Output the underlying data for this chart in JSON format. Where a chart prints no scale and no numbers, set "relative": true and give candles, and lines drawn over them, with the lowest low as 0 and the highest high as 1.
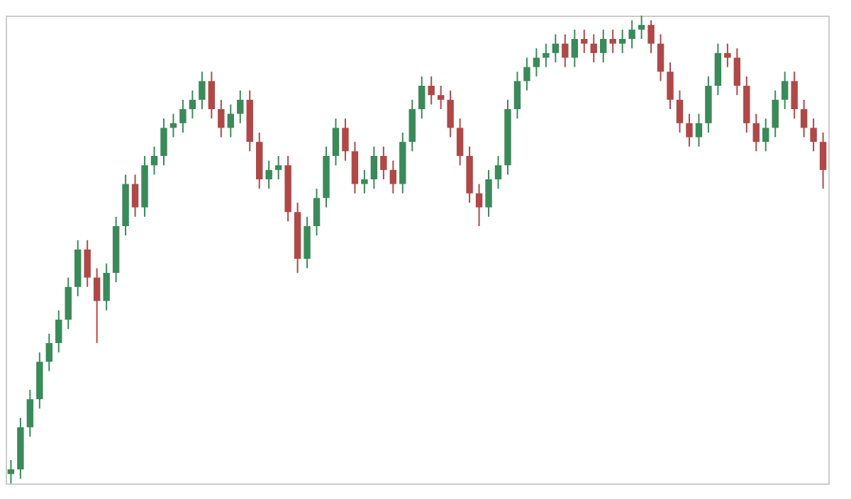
{
  "chart_data": {
    "type": "candlestick",
    "relative": true,
    "colors": [
      "#3a8a5a",
      "#3a8a5a",
      "#3a8a5a",
      "#3a8a5a",
      "#3a8a5a",
      "#3a8a5a",
      "#3a8a5a",
      "#3a8a5a",
      "#b04848",
      "#b04848",
      "#3a8a5a",
      "#3a8a5a",
      "#3a8a5a",
      "#b04848",
      "#3a8a5a",
      "#3a8a5a",
      "#3a8a5a",
      "#3a8a5a",
      "#3a8a5a",
      "#3a8a5a",
      "#3a8a5a",
      "#b04848",
      "#b04848",
      "#3a8a5a",
      "#3a8a5a",
      "#b04848",
      "#b04848",
      "#3a8a5a",
      "#3a8a5a",
      "#b04848",
      "#b04848",
      "#3a8a5a",
      "#3a8a5a",
      "#3a8a5a",
      "#3a8a5a",
      "#b04848",
      "#b04848",
      "#3a8a5a",
      "#3a8a5a",
      "#b04848",
      "#b04848",
      "#3a8a5a",
      "#3a8a5a",
      "#3a8a5a",
      "#b04848",
      "#b04848",
      "#b04848",
      "#b04848",
      "#b04848",
      "#b04848",
      "#3a8a5a",
      "#3a8a5a",
      "#3a8a5a",
      "#3a8a5a",
      "#3a8a5a",
      "#3a8a5a",
      "#3a8a5a",
      "#3a8a5a",
      "#b04848",
      "#3a8a5a",
      "#b04848",
      "#b04848",
      "#3a8a5a",
      "#b04848",
      "#3a8a5a",
      "#3a8a5a",
      "#3a8a5a",
      "#b04848",
      "#b04848",
      "#b04848",
      "#b04848",
      "#b04848",
      "#3a8a5a",
      "#3a8a5a",
      "#3a8a5a",
      "#b04848",
      "#b04848",
      "#b04848",
      "#b04848",
      "#3a8a5a",
      "#3a8a5a",
      "#3a8a5a",
      "#b04848",
      "#b04848",
      "#b04848",
      "#b04848"
    ],
    "categories": [
      null,
      null,
      null,
      null,
      null,
      null,
      null,
      null,
      null,
      null,
      null,
      null,
      null,
      null,
      null,
      null,
      null,
      null,
      null,
      null,
      null,
      null,
      null,
      null,
      null,
      null,
      null,
      null,
      null,
      null,
      null,
      null,
      null,
      null,
      null,
      null,
      null,
      null,
      null,
      null,
      null,
      null,
      null,
      null,
      null,
      null,
      null,
      null,
      null,
      null,
      null,
      null,
      null,
      null,
      null,
      null,
      null,
      null,
      null,
      null,
      null,
      null,
      null,
      null,
      null,
      null,
      null,
      null,
      null,
      null,
      null,
      null,
      null,
      null,
      null,
      null,
      null,
      null,
      null,
      null,
      null,
      null,
      null,
      null,
      null,
      null
    ],
    "ohlc": [
      [
        0.02,
        0.05,
        0,
        0.03
      ],
      [
        0.03,
        0.14,
        0.01,
        0.12
      ],
      [
        0.12,
        0.2,
        0.1,
        0.18
      ],
      [
        0.18,
        0.28,
        0.16,
        0.26
      ],
      [
        0.26,
        0.32,
        0.24,
        0.3
      ],
      [
        0.3,
        0.37,
        0.28,
        0.35
      ],
      [
        0.35,
        0.44,
        0.33,
        0.42
      ],
      [
        0.42,
        0.52,
        0.4,
        0.5
      ],
      [
        0.5,
        0.52,
        0.42,
        0.44
      ],
      [
        0.44,
        0.46,
        0.3,
        0.39
      ],
      [
        0.39,
        0.47,
        0.37,
        0.45
      ],
      [
        0.45,
        0.57,
        0.43,
        0.55
      ],
      [
        0.55,
        0.66,
        0.53,
        0.64
      ],
      [
        0.64,
        0.66,
        0.57,
        0.59
      ],
      [
        0.59,
        0.7,
        0.57,
        0.68
      ],
      [
        0.68,
        0.72,
        0.66,
        0.7
      ],
      [
        0.7,
        0.78,
        0.68,
        0.76
      ],
      [
        0.76,
        0.79,
        0.74,
        0.77
      ],
      [
        0.77,
        0.82,
        0.75,
        0.8
      ],
      [
        0.8,
        0.84,
        0.78,
        0.82
      ],
      [
        0.82,
        0.88,
        0.8,
        0.86
      ],
      [
        0.86,
        0.88,
        0.78,
        0.8
      ],
      [
        0.8,
        0.82,
        0.74,
        0.76
      ],
      [
        0.76,
        0.81,
        0.74,
        0.79
      ],
      [
        0.79,
        0.84,
        0.77,
        0.82
      ],
      [
        0.82,
        0.84,
        0.71,
        0.73
      ],
      [
        0.73,
        0.75,
        0.63,
        0.65
      ],
      [
        0.65,
        0.69,
        0.63,
        0.67
      ],
      [
        0.67,
        0.7,
        0.65,
        0.68
      ],
      [
        0.68,
        0.7,
        0.56,
        0.58
      ],
      [
        0.58,
        0.6,
        0.45,
        0.48
      ],
      [
        0.48,
        0.57,
        0.46,
        0.55
      ],
      [
        0.55,
        0.63,
        0.53,
        0.61
      ],
      [
        0.61,
        0.72,
        0.59,
        0.7
      ],
      [
        0.7,
        0.78,
        0.68,
        0.76
      ],
      [
        0.76,
        0.78,
        0.69,
        0.71
      ],
      [
        0.71,
        0.73,
        0.62,
        0.64
      ],
      [
        0.64,
        0.67,
        0.62,
        0.65
      ],
      [
        0.65,
        0.72,
        0.63,
        0.7
      ],
      [
        0.7,
        0.72,
        0.65,
        0.67
      ],
      [
        0.67,
        0.69,
        0.62,
        0.64
      ],
      [
        0.64,
        0.75,
        0.62,
        0.73
      ],
      [
        0.73,
        0.82,
        0.71,
        0.8
      ],
      [
        0.8,
        0.87,
        0.78,
        0.85
      ],
      [
        0.85,
        0.87,
        0.81,
        0.83
      ],
      [
        0.83,
        0.85,
        0.8,
        0.82
      ],
      [
        0.82,
        0.84,
        0.74,
        0.76
      ],
      [
        0.76,
        0.78,
        0.68,
        0.7
      ],
      [
        0.7,
        0.72,
        0.6,
        0.62
      ],
      [
        0.62,
        0.64,
        0.55,
        0.59
      ],
      [
        0.59,
        0.67,
        0.57,
        0.65
      ],
      [
        0.65,
        0.7,
        0.63,
        0.68
      ],
      [
        0.68,
        0.82,
        0.66,
        0.8
      ],
      [
        0.8,
        0.88,
        0.78,
        0.86
      ],
      [
        0.86,
        0.91,
        0.84,
        0.89
      ],
      [
        0.89,
        0.93,
        0.87,
        0.91
      ],
      [
        0.91,
        0.94,
        0.89,
        0.92
      ],
      [
        0.92,
        0.96,
        0.9,
        0.94
      ],
      [
        0.94,
        0.96,
        0.89,
        0.91
      ],
      [
        0.91,
        0.97,
        0.89,
        0.95
      ],
      [
        0.95,
        0.97,
        0.92,
        0.94
      ],
      [
        0.94,
        0.96,
        0.9,
        0.92
      ],
      [
        0.92,
        0.97,
        0.9,
        0.95
      ],
      [
        0.95,
        0.97,
        0.92,
        0.94
      ],
      [
        0.94,
        0.97,
        0.92,
        0.95
      ],
      [
        0.95,
        0.99,
        0.93,
        0.97
      ],
      [
        0.97,
        1,
        0.95,
        0.98
      ],
      [
        0.98,
        0.99,
        0.92,
        0.94
      ],
      [
        0.94,
        0.96,
        0.86,
        0.88
      ],
      [
        0.88,
        0.9,
        0.8,
        0.82
      ],
      [
        0.82,
        0.84,
        0.75,
        0.77
      ],
      [
        0.77,
        0.79,
        0.72,
        0.74
      ],
      [
        0.74,
        0.79,
        0.72,
        0.77
      ],
      [
        0.77,
        0.87,
        0.75,
        0.85
      ],
      [
        0.85,
        0.94,
        0.83,
        0.92
      ],
      [
        0.92,
        0.94,
        0.89,
        0.91
      ],
      [
        0.91,
        0.93,
        0.83,
        0.85
      ],
      [
        0.85,
        0.87,
        0.75,
        0.77
      ],
      [
        0.77,
        0.79,
        0.71,
        0.73
      ],
      [
        0.73,
        0.78,
        0.71,
        0.76
      ],
      [
        0.76,
        0.84,
        0.74,
        0.82
      ],
      [
        0.82,
        0.88,
        0.8,
        0.86
      ],
      [
        0.86,
        0.88,
        0.78,
        0.8
      ],
      [
        0.8,
        0.82,
        0.74,
        0.76
      ],
      [
        0.76,
        0.78,
        0.71,
        0.73
      ],
      [
        0.73,
        0.75,
        0.63,
        0.67
      ]
    ]
  }
}
